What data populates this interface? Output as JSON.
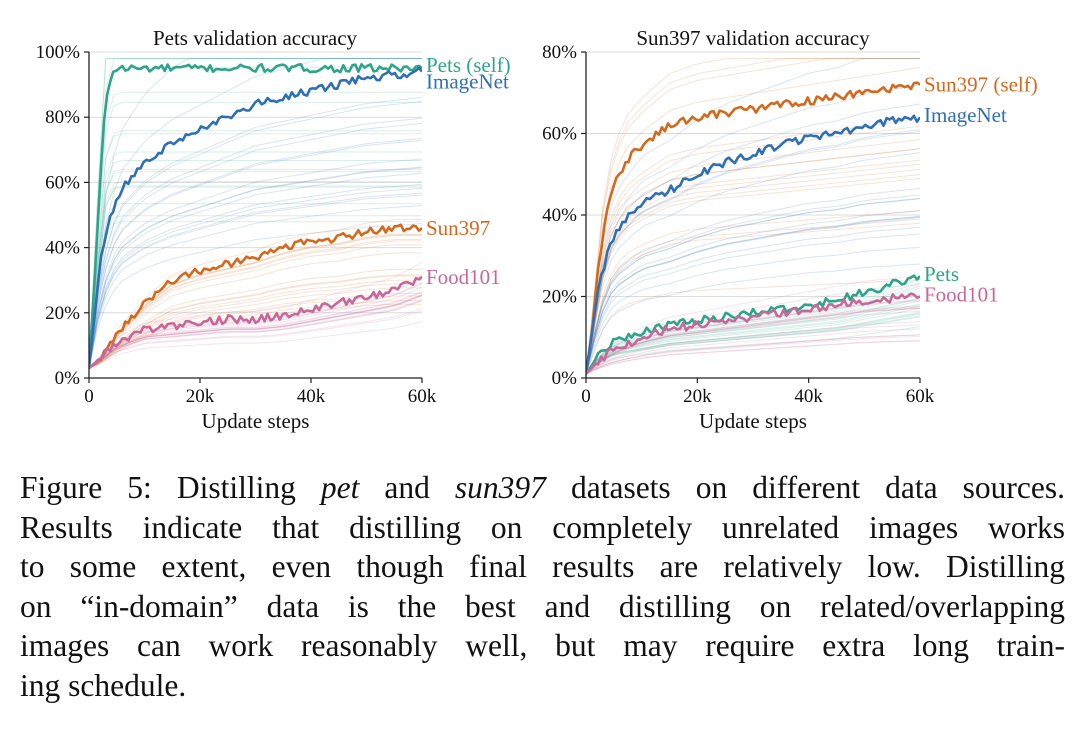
{
  "colors": {
    "pets": "#2ca58a",
    "imagenet": "#2f6fb3",
    "sun397": "#d4691e",
    "food101": "#c8689a",
    "grid": "#dcdcdc",
    "axis": "#222222"
  },
  "chart_data": [
    {
      "type": "line",
      "title": "Pets validation accuracy",
      "xlabel": "Update steps",
      "ylabel": "",
      "xlim": [
        0,
        60000
      ],
      "ylim": [
        0,
        100
      ],
      "xticks": [
        0,
        20000,
        40000,
        60000
      ],
      "xtick_labels": [
        "0",
        "20k",
        "40k",
        "60k"
      ],
      "yticks": [
        0,
        20,
        40,
        60,
        80,
        100
      ],
      "ytick_labels": [
        "0%",
        "20%",
        "40%",
        "60%",
        "80%",
        "100%"
      ],
      "grid": "horizontal",
      "legend": "direct labels at line ends (right)",
      "series": [
        {
          "name": "Pets (self)",
          "color": "#2ca58a",
          "label_value": 96,
          "x": [
            0,
            1000,
            2000,
            3000,
            4000,
            5000,
            10000,
            20000,
            30000,
            40000,
            50000,
            60000
          ],
          "y": [
            3,
            30,
            60,
            85,
            93,
            95,
            95,
            95,
            95,
            95,
            95,
            95
          ]
        },
        {
          "name": "ImageNet",
          "color": "#2f6fb3",
          "label_value": 91,
          "x": [
            0,
            2000,
            4000,
            6000,
            10000,
            15000,
            20000,
            25000,
            30000,
            35000,
            40000,
            45000,
            50000,
            55000,
            60000
          ],
          "y": [
            3,
            35,
            50,
            58,
            66,
            72,
            76,
            80,
            84,
            86,
            88,
            90,
            92,
            93,
            94
          ]
        },
        {
          "name": "Sun397",
          "color": "#d4691e",
          "label_value": 46,
          "x": [
            0,
            2000,
            5000,
            10000,
            15000,
            20000,
            25000,
            30000,
            35000,
            40000,
            45000,
            50000,
            55000,
            60000
          ],
          "y": [
            3,
            6,
            14,
            23,
            30,
            33,
            35,
            37,
            40,
            42,
            43,
            45,
            46,
            46
          ]
        },
        {
          "name": "Food101",
          "color": "#c8689a",
          "label_value": 31,
          "x": [
            0,
            2000,
            5000,
            10000,
            15000,
            20000,
            25000,
            30000,
            35000,
            40000,
            45000,
            50000,
            55000,
            60000
          ],
          "y": [
            3,
            6,
            11,
            15,
            16,
            17,
            18,
            18,
            19,
            21,
            23,
            25,
            27,
            31
          ]
        }
      ]
    },
    {
      "type": "line",
      "title": "Sun397 validation accuracy",
      "xlabel": "Update steps",
      "ylabel": "",
      "xlim": [
        0,
        60000
      ],
      "ylim": [
        0,
        80
      ],
      "xticks": [
        0,
        20000,
        40000,
        60000
      ],
      "xtick_labels": [
        "0",
        "20k",
        "40k",
        "60k"
      ],
      "yticks": [
        0,
        20,
        40,
        60,
        80
      ],
      "ytick_labels": [
        "0%",
        "20%",
        "40%",
        "60%",
        "80%"
      ],
      "grid": "horizontal",
      "legend": "direct labels at line ends (right)",
      "series": [
        {
          "name": "Sun397 (self)",
          "color": "#d4691e",
          "label_value": 72,
          "x": [
            0,
            1000,
            2000,
            3000,
            4000,
            5000,
            7000,
            10000,
            15000,
            20000,
            25000,
            30000,
            35000,
            40000,
            45000,
            50000,
            55000,
            60000
          ],
          "y": [
            1,
            10,
            25,
            35,
            42,
            47,
            53,
            57,
            62,
            64,
            65,
            66,
            67,
            68,
            69,
            70,
            71,
            72
          ]
        },
        {
          "name": "ImageNet",
          "color": "#2f6fb3",
          "label_value": 64.5,
          "x": [
            0,
            2000,
            4000,
            6000,
            8000,
            10000,
            15000,
            20000,
            25000,
            30000,
            35000,
            40000,
            45000,
            50000,
            55000,
            60000
          ],
          "y": [
            1,
            20,
            32,
            37,
            40,
            43,
            46,
            50,
            53,
            55,
            57,
            59,
            60,
            62,
            63,
            64
          ]
        },
        {
          "name": "Pets",
          "color": "#2ca58a",
          "label_value": 25.5,
          "x": [
            0,
            2000,
            5000,
            10000,
            15000,
            20000,
            25000,
            30000,
            35000,
            40000,
            45000,
            50000,
            55000,
            60000
          ],
          "y": [
            1,
            5,
            9,
            11,
            13,
            14,
            15,
            16,
            17,
            18,
            19,
            21,
            23,
            25
          ]
        },
        {
          "name": "Food101",
          "color": "#c8689a",
          "label_value": 20.5,
          "x": [
            0,
            2000,
            5000,
            10000,
            15000,
            20000,
            25000,
            30000,
            35000,
            40000,
            45000,
            50000,
            55000,
            60000
          ],
          "y": [
            1,
            4,
            7,
            10,
            12,
            13,
            14,
            15,
            16,
            17,
            18,
            19,
            19.5,
            20
          ]
        }
      ]
    }
  ],
  "caption": {
    "lines": [
      [
        {
          "t": "Figure 5: Distilling "
        },
        {
          "t": "pet",
          "i": true
        },
        {
          "t": " and "
        },
        {
          "t": "sun397",
          "i": true
        },
        {
          "t": " datasets on different data sources."
        }
      ],
      [
        {
          "t": "Results indicate that distilling on completely unrelated images works"
        }
      ],
      [
        {
          "t": "to some extent, even though final results are relatively low. Distilling"
        }
      ],
      [
        {
          "t": "on “in-domain” data is the best and distilling on related/overlapping"
        }
      ],
      [
        {
          "t": "images can work reasonably well, but may require extra long train-"
        }
      ],
      [
        {
          "t": "ing schedule."
        }
      ]
    ]
  }
}
